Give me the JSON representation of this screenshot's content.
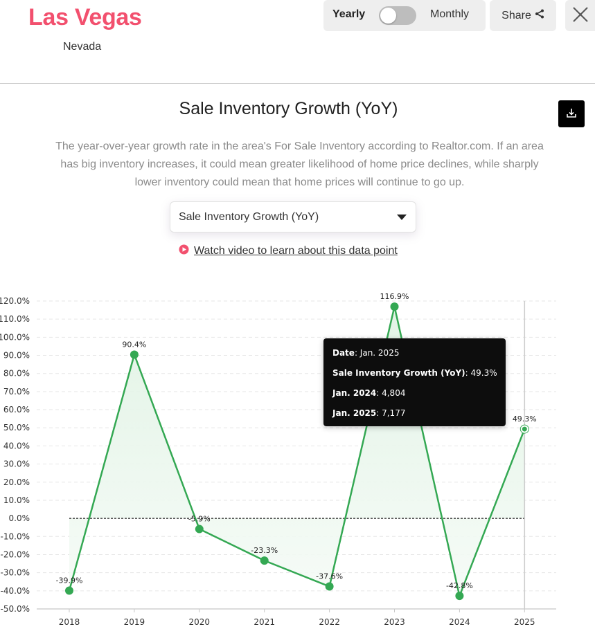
{
  "header": {
    "city": "Las Vegas",
    "state": "Nevada",
    "toggle": {
      "left_label": "Yearly",
      "right_label": "Monthly",
      "selected": "Yearly"
    },
    "share_label": "Share",
    "icons": {
      "share": "share-icon",
      "close": "close-icon"
    }
  },
  "main": {
    "title": "Sale Inventory Growth (YoY)",
    "download_icon": "download-icon",
    "description": "The year-over-year growth rate in the area's For Sale Inventory according to Realtor.com. If an area has big inventory increases, it could mean greater likelihood of home price declines, while sharply lower inventory could mean that home prices will continue to go up.",
    "metric_select": {
      "value": "Sale Inventory Growth (YoY)",
      "icon": "caret-down-icon"
    },
    "video_link": {
      "label": "Watch video to learn about this data point",
      "icon": "play-circle-icon"
    }
  },
  "tooltip": {
    "rows": [
      {
        "key": "Date",
        "value": "Jan. 2025"
      },
      {
        "key": "Sale Inventory Growth (YoY)",
        "value": "49.3%"
      },
      {
        "key": "Jan. 2024",
        "value": "4,804"
      },
      {
        "key": "Jan. 2025",
        "value": "7,177"
      }
    ]
  },
  "colors": {
    "brand": "#f2506e",
    "line": "#34a853",
    "fill": "#e8f5ea",
    "tooltip_bg": "#0d0d0d"
  },
  "chart_data": {
    "type": "line",
    "title": "Sale Inventory Growth (YoY)",
    "xlabel": "",
    "ylabel": "",
    "categories": [
      "2018",
      "2019",
      "2020",
      "2021",
      "2022",
      "2023",
      "2024",
      "2025"
    ],
    "series": [
      {
        "name": "Sale Inventory Growth (YoY)",
        "values": [
          -39.9,
          90.4,
          -5.9,
          -23.3,
          -37.6,
          116.9,
          -42.8,
          49.3
        ],
        "labels": [
          "-39.9%",
          "90.4%",
          "-5.9%",
          "-23.3%",
          "-37.6%",
          "116.9%",
          "-42.8%",
          "49.3%"
        ]
      }
    ],
    "y_ticks": [
      "120.0%",
      "110.0%",
      "100.0%",
      "90.0%",
      "80.0%",
      "70.0%",
      "60.0%",
      "50.0%",
      "40.0%",
      "30.0%",
      "20.0%",
      "10.0%",
      "0.0%",
      "-10.0%",
      "-20.0%",
      "-30.0%",
      "-40.0%",
      "-50.0%"
    ],
    "ylim": [
      -50,
      120
    ],
    "grid": true,
    "zero_line": "dashed",
    "legend": "none",
    "hover_index": 7
  }
}
